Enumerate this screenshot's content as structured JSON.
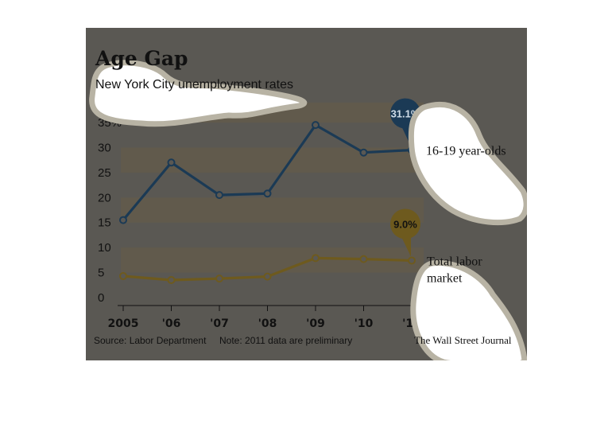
{
  "chart_data": {
    "type": "line",
    "title": "Age Gap",
    "subtitle": "New York City unemployment rates",
    "categories": [
      "2005",
      "'06",
      "'07",
      "'08",
      "'09",
      "'10",
      "'11"
    ],
    "y_tick_labels": [
      "0",
      "5",
      "10",
      "15",
      "20",
      "25",
      "30",
      "35%"
    ],
    "ylim": [
      0,
      35
    ],
    "grid": "alternating horizontal bands",
    "series": [
      {
        "name": "16-19 year-olds",
        "values": [
          15.5,
          27,
          20.5,
          20.8,
          34.5,
          29,
          29.5
        ],
        "color": "#1b3a55",
        "callout": "31.1%"
      },
      {
        "name": "Total labor market",
        "values": [
          4.3,
          3.5,
          3.8,
          4.2,
          7.9,
          7.7,
          7.4
        ],
        "color": "#6e5a1e",
        "callout": "9.0%"
      }
    ],
    "source": "Source: Labor Department",
    "note": "Note: 2011 data are preliminary",
    "brand": "The Wall Street Journal"
  },
  "colors": {
    "panel_background": "#5a5853",
    "band": "#615a4c",
    "axis": "#111111"
  }
}
